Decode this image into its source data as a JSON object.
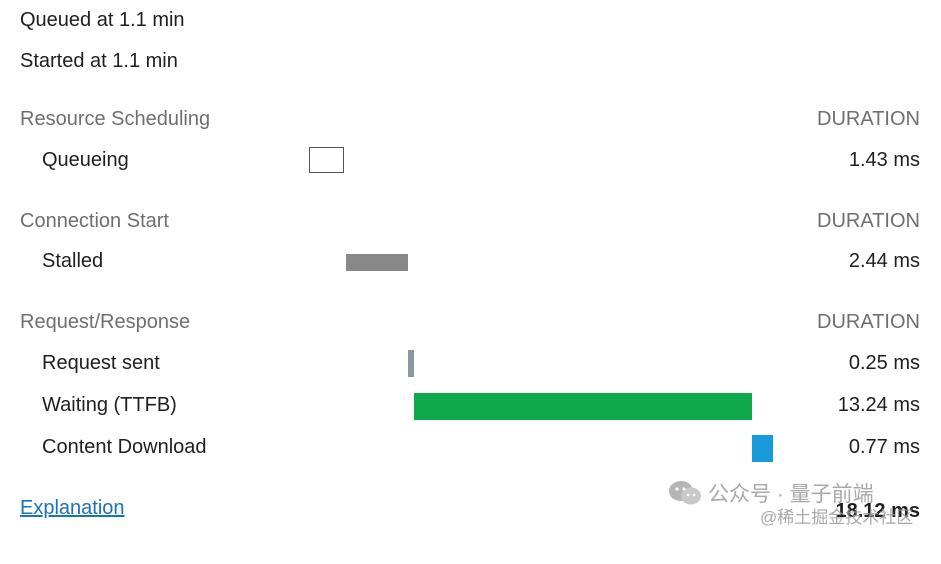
{
  "header": {
    "queued": "Queued at 1.1 min",
    "started": "Started at 1.1 min"
  },
  "sections": [
    {
      "title": "Resource Scheduling",
      "duration_label": "DURATION",
      "rows": [
        {
          "label": "Queueing",
          "value": "1.43 ms"
        }
      ]
    },
    {
      "title": "Connection Start",
      "duration_label": "DURATION",
      "rows": [
        {
          "label": "Stalled",
          "value": "2.44 ms"
        }
      ]
    },
    {
      "title": "Request/Response",
      "duration_label": "DURATION",
      "rows": [
        {
          "label": "Request sent",
          "value": "0.25 ms"
        },
        {
          "label": "Waiting (TTFB)",
          "value": "13.24 ms"
        },
        {
          "label": "Content Download",
          "value": "0.77 ms"
        }
      ]
    }
  ],
  "footer": {
    "explanation_link": "Explanation",
    "total": "18.12 ms"
  },
  "watermark": {
    "line1": "公众号 · 量子前端",
    "line2": "@稀土掘金技术社区"
  },
  "colors": {
    "queueing": "#ffffff",
    "stalled": "#888888",
    "request_sent": "#8a9aa0",
    "waiting": "#0fa84a",
    "content_download": "#1899d9",
    "link": "#1a73b8"
  }
}
